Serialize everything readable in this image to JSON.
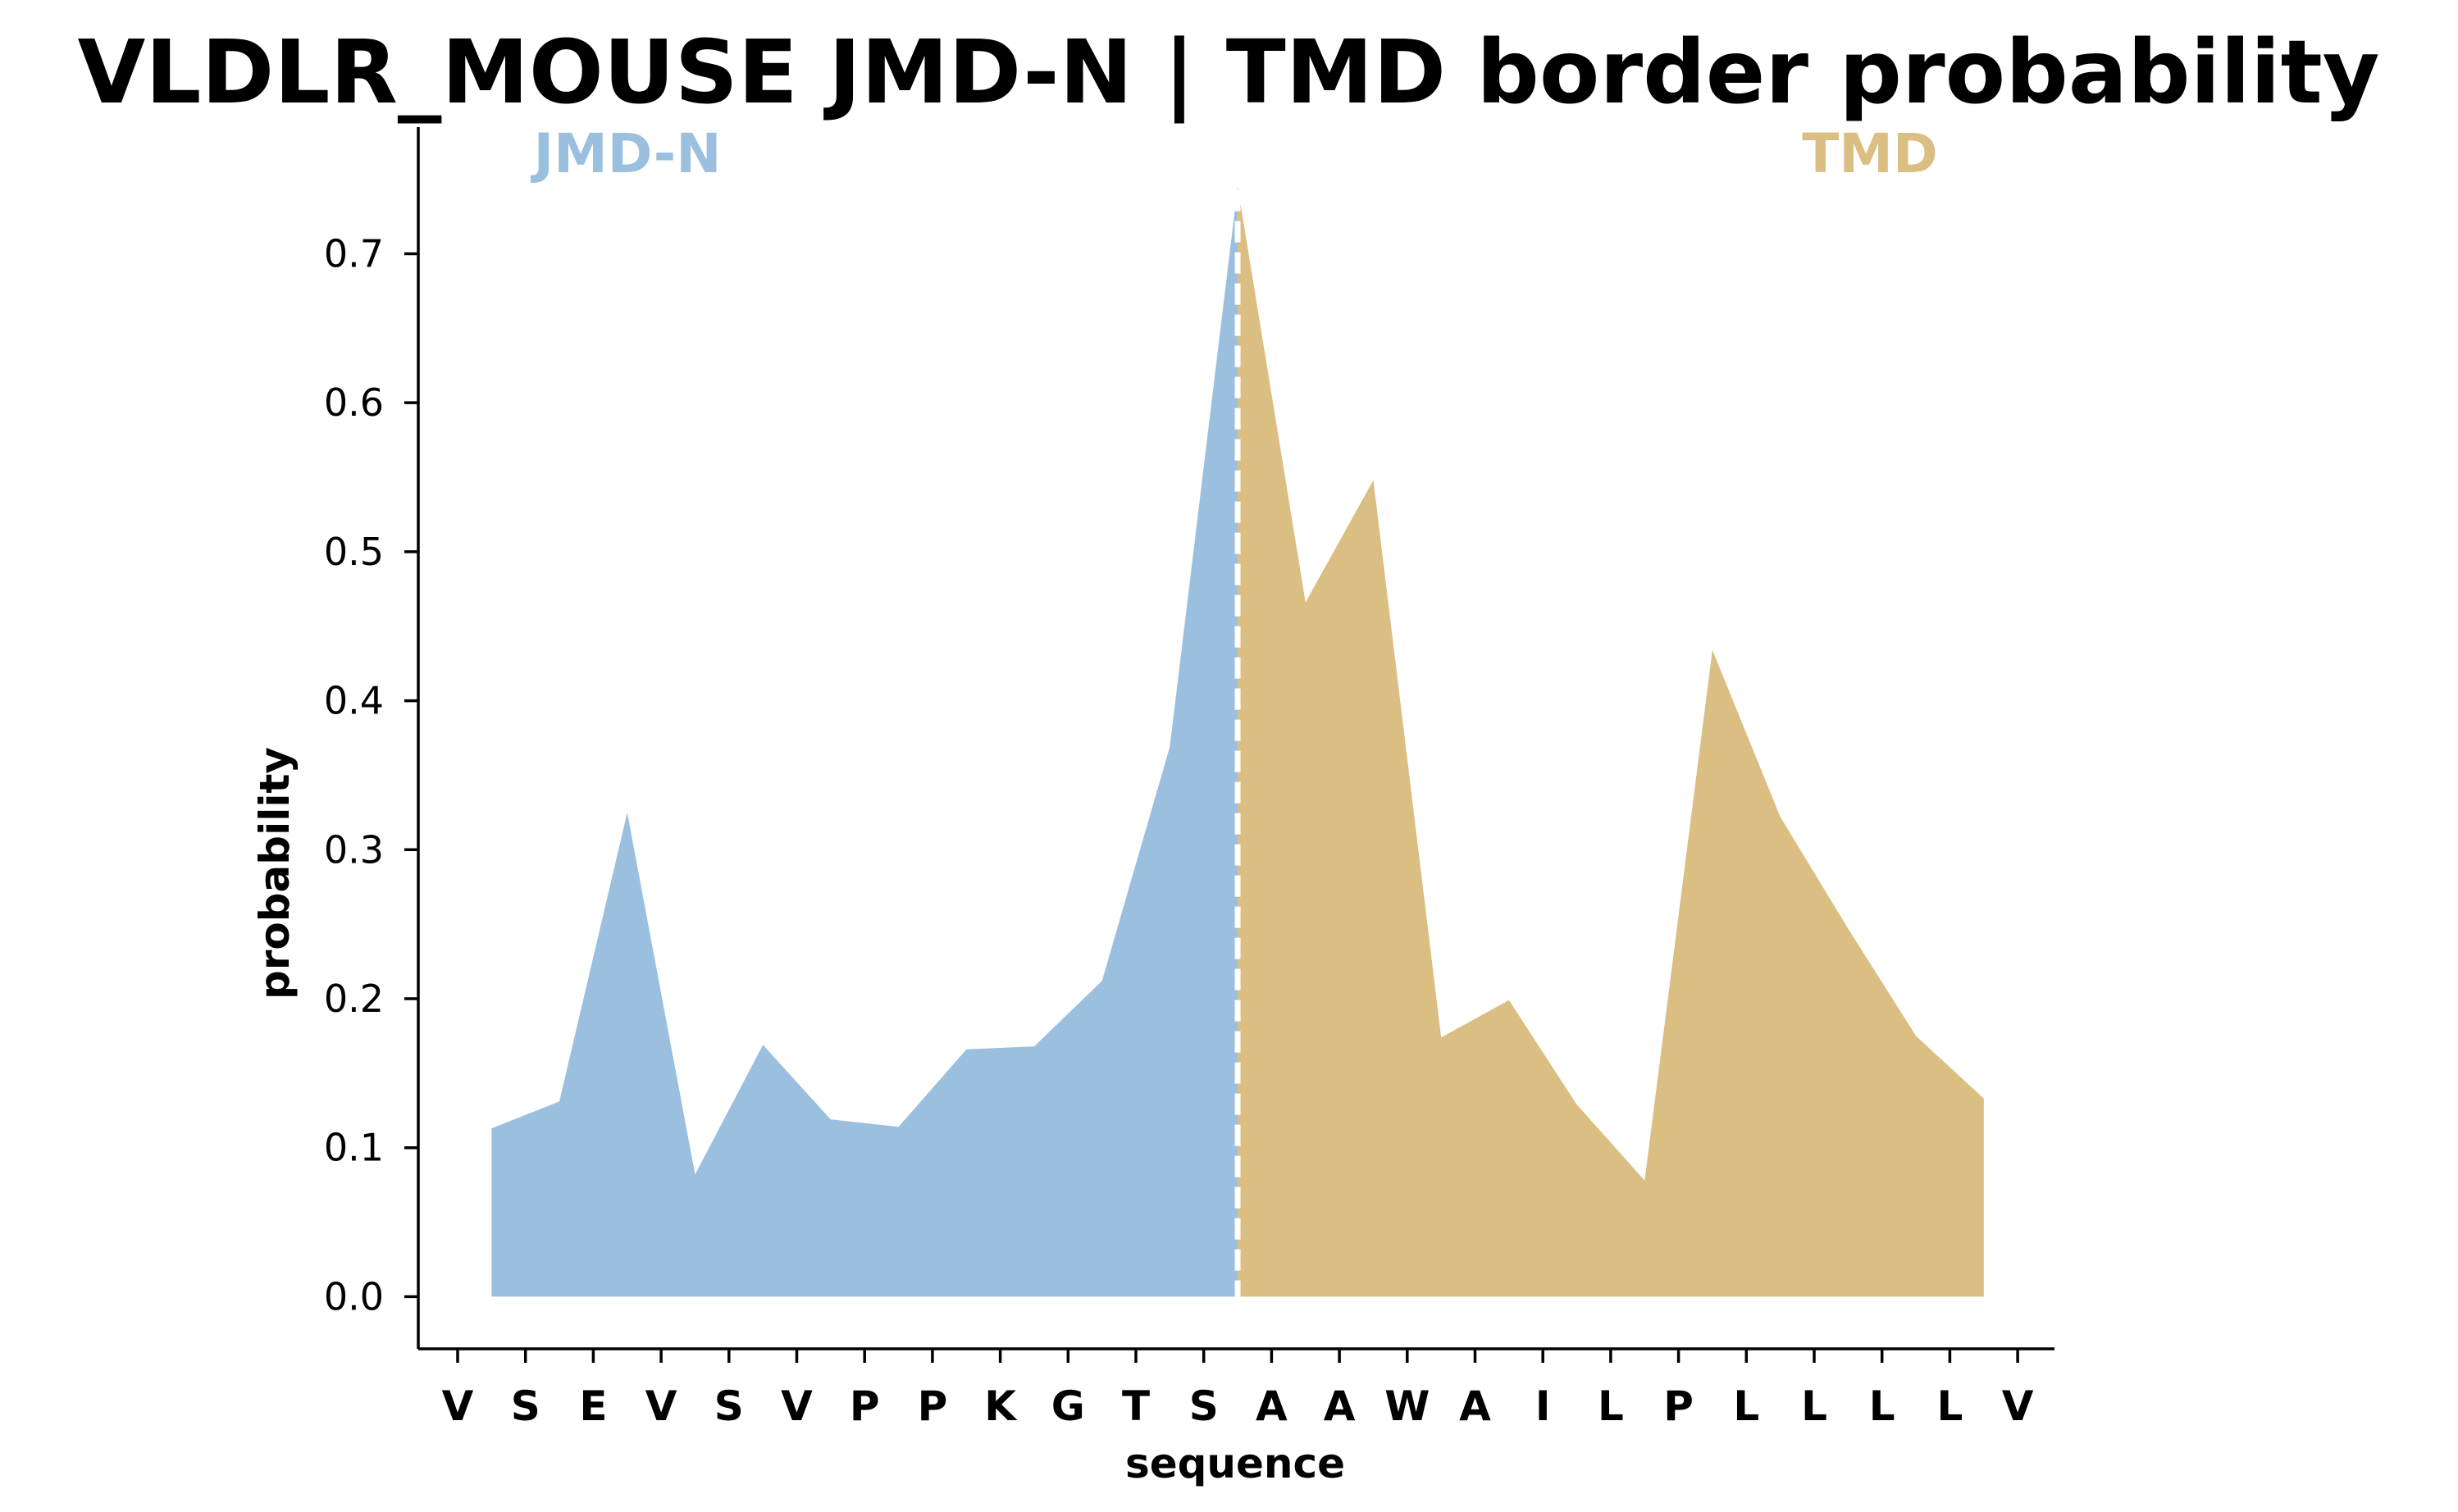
{
  "chart_data": {
    "type": "area",
    "title": "VLDLR_MOUSE JMD-N | TMD border probability",
    "xlabel": "sequence",
    "ylabel": "probability",
    "ylim": [
      -0.035,
      0.785
    ],
    "yticks": [
      "0.0",
      "0.1",
      "0.2",
      "0.3",
      "0.4",
      "0.5",
      "0.6",
      "0.7"
    ],
    "grid": false,
    "sequence": [
      "V",
      "S",
      "E",
      "V",
      "S",
      "V",
      "P",
      "P",
      "K",
      "G",
      "T",
      "S",
      "A",
      "A",
      "W",
      "A",
      "I",
      "L",
      "P",
      "L",
      "L",
      "L",
      "L",
      "V"
    ],
    "x": [
      0.5,
      1.5,
      2.5,
      3.5,
      4.5,
      5.5,
      6.5,
      7.5,
      8.5,
      9.5,
      10.5,
      11.5,
      12.5,
      13.5,
      14.5,
      15.5,
      16.5,
      17.5,
      18.5,
      19.5,
      20.5,
      21.5,
      22.5
    ],
    "values": [
      0.113,
      0.131,
      0.325,
      0.082,
      0.169,
      0.119,
      0.114,
      0.166,
      0.168,
      0.212,
      0.369,
      0.745,
      0.466,
      0.548,
      0.174,
      0.199,
      0.129,
      0.078,
      0.434,
      0.322,
      0.247,
      0.175,
      0.133
    ],
    "border_index": 11.5,
    "series": [
      {
        "name": "JMD-N",
        "range": [
          0.5,
          11.5
        ],
        "color": "#9BBFDF"
      },
      {
        "name": "TMD",
        "range": [
          11.5,
          22.5
        ],
        "color": "#DABE82"
      }
    ],
    "border_line_color": "#ffffff"
  }
}
